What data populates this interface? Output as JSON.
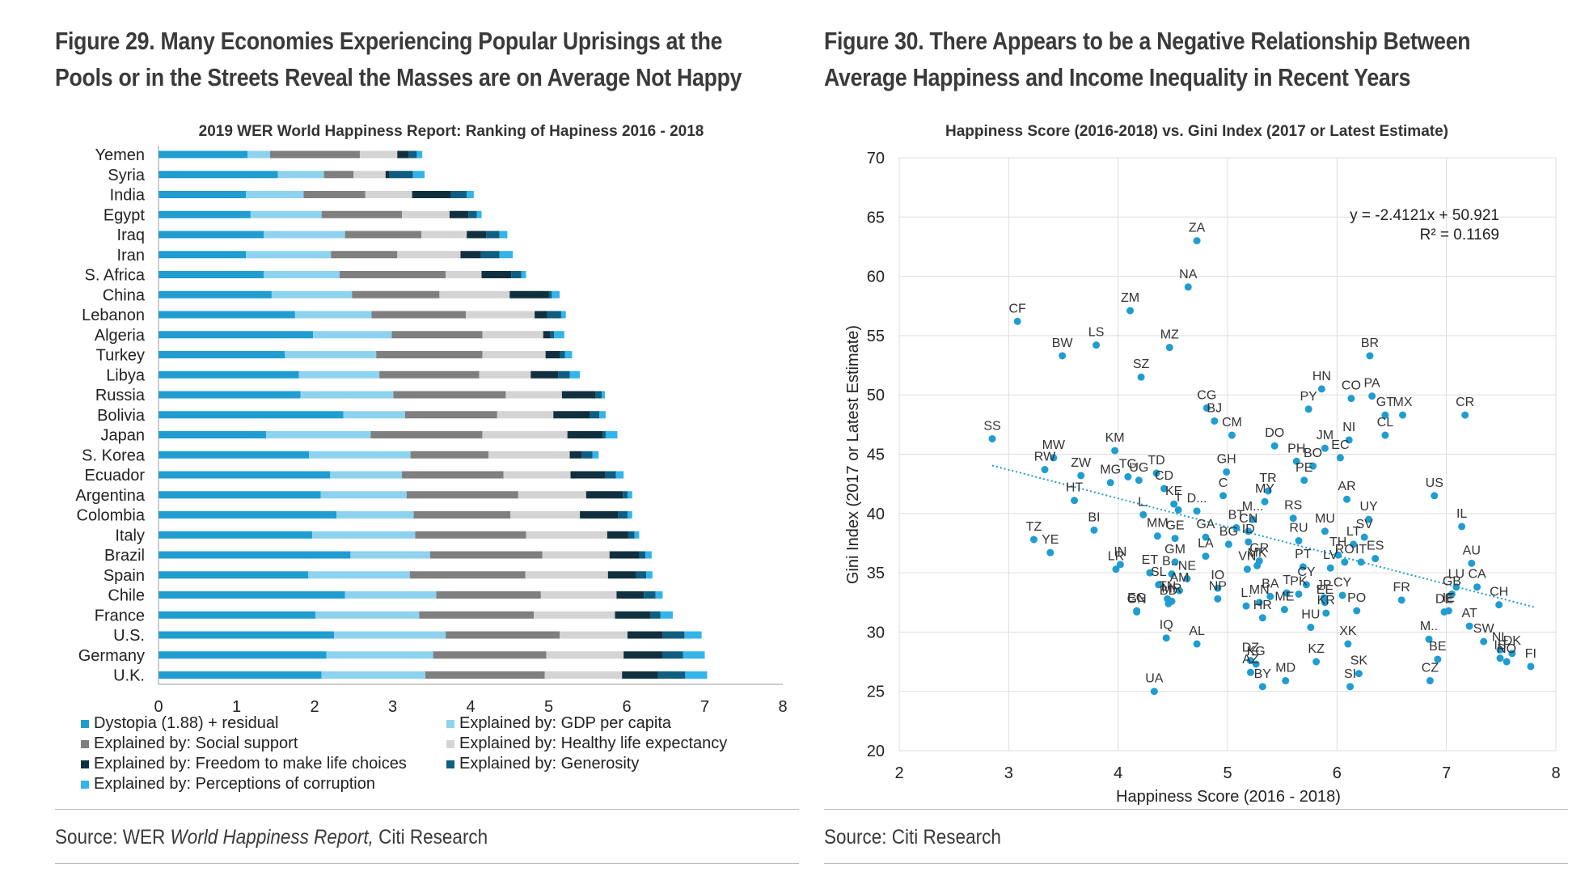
{
  "page": {
    "fig29_title": "Figure 29. Many Economies Experiencing Popular Uprisings at the Pools or in the Streets Reveal the Masses are on Average Not Happy",
    "fig30_title": "Figure 30. There Appears to be a Negative Relationship Between Average Happiness and Income Inequality in Recent Years",
    "fig29_source_prefix": "Source: WER ",
    "fig29_source_italic": "World Happiness Report,",
    "fig29_source_suffix": " Citi Research",
    "fig30_source": "Source: Citi Research"
  },
  "chart_data": [
    {
      "type": "bar",
      "stacked": true,
      "orientation": "horizontal",
      "title": "2019 WER World Happiness Report: Ranking of Hapiness 2016 - 2018",
      "categories": [
        "Yemen",
        "Syria",
        "India",
        "Egypt",
        "Iraq",
        "Iran",
        "S. Africa",
        "China",
        "Lebanon",
        "Algeria",
        "Turkey",
        "Libya",
        "Russia",
        "Bolivia",
        "Japan",
        "S. Korea",
        "Ecuador",
        "Argentina",
        "Colombia",
        "Italy",
        "Brazil",
        "Spain",
        "Chile",
        "France",
        "U.S.",
        "Germany",
        "U.K."
      ],
      "xlim": [
        0,
        8
      ],
      "xticks": [
        0,
        1,
        2,
        3,
        4,
        5,
        6,
        7,
        8
      ],
      "grid": false,
      "legend_position": "bottom",
      "series": [
        {
          "name": "Dystopia (1.88) + residual",
          "color": "#1f9dd1",
          "values": [
            1.14,
            1.53,
            1.12,
            1.18,
            1.35,
            1.12,
            1.35,
            1.45,
            1.75,
            1.98,
            1.62,
            1.8,
            1.82,
            2.37,
            1.38,
            1.93,
            2.2,
            2.08,
            2.28,
            1.97,
            2.46,
            1.92,
            2.39,
            2.01,
            2.25,
            2.15,
            2.09
          ]
        },
        {
          "name": "Explained by: GDP per capita",
          "color": "#8dd3f0",
          "values": [
            0.29,
            0.59,
            0.74,
            0.91,
            1.04,
            1.09,
            0.97,
            1.03,
            0.98,
            1.01,
            1.17,
            1.03,
            1.19,
            0.79,
            1.34,
            1.3,
            0.92,
            1.1,
            0.99,
            1.32,
            1.02,
            1.3,
            1.17,
            1.33,
            1.43,
            1.37,
            1.33
          ]
        },
        {
          "name": "Explained by: Social support",
          "color": "#7f7f7f",
          "values": [
            1.15,
            0.38,
            0.79,
            1.03,
            0.98,
            0.85,
            1.36,
            1.12,
            1.21,
            1.16,
            1.36,
            1.28,
            1.44,
            1.18,
            1.43,
            1.0,
            1.3,
            1.43,
            1.24,
            1.42,
            1.44,
            1.48,
            1.34,
            1.47,
            1.46,
            1.45,
            1.53
          ]
        },
        {
          "name": "Explained by: Healthy life expectancy",
          "color": "#d4d4d4",
          "values": [
            0.48,
            0.41,
            0.6,
            0.61,
            0.58,
            0.81,
            0.46,
            0.9,
            0.88,
            0.78,
            0.81,
            0.66,
            0.72,
            0.72,
            1.09,
            1.04,
            0.86,
            0.87,
            0.89,
            1.04,
            0.86,
            1.06,
            0.97,
            1.04,
            0.87,
            0.99,
            0.99
          ]
        },
        {
          "name": "Explained by: Freedom to make life choices",
          "color": "#10303f",
          "values": [
            0.15,
            0.05,
            0.5,
            0.24,
            0.25,
            0.26,
            0.38,
            0.5,
            0.16,
            0.09,
            0.18,
            0.35,
            0.43,
            0.47,
            0.45,
            0.15,
            0.44,
            0.47,
            0.49,
            0.27,
            0.38,
            0.36,
            0.35,
            0.45,
            0.45,
            0.5,
            0.46
          ]
        },
        {
          "name": "Explained by: Generosity",
          "color": "#0f5d80",
          "values": [
            0.1,
            0.3,
            0.2,
            0.11,
            0.17,
            0.24,
            0.13,
            0.04,
            0.18,
            0.05,
            0.07,
            0.15,
            0.08,
            0.12,
            0.04,
            0.14,
            0.14,
            0.06,
            0.12,
            0.08,
            0.08,
            0.13,
            0.15,
            0.13,
            0.28,
            0.26,
            0.35
          ]
        },
        {
          "name": "Explained by: Perceptions of corruption",
          "color": "#33b4ea",
          "values": [
            0.07,
            0.15,
            0.09,
            0.06,
            0.1,
            0.17,
            0.06,
            0.1,
            0.06,
            0.13,
            0.09,
            0.13,
            0.04,
            0.08,
            0.15,
            0.08,
            0.1,
            0.06,
            0.06,
            0.06,
            0.08,
            0.08,
            0.09,
            0.16,
            0.22,
            0.28,
            0.28
          ]
        }
      ]
    },
    {
      "type": "scatter",
      "title": "Happiness Score (2016-2018) vs. Gini Index (2017 or Latest Estimate)",
      "xlabel": "Happiness Score (2016 - 2018)",
      "ylabel": "Gini Index (2017 or Latest Estimate)",
      "xlim": [
        2,
        8
      ],
      "ylim": [
        20,
        70
      ],
      "xticks": [
        2,
        3,
        4,
        5,
        6,
        7,
        8
      ],
      "yticks": [
        20,
        25,
        30,
        35,
        40,
        45,
        50,
        55,
        60,
        65,
        70
      ],
      "grid": true,
      "color": "#1f9dd1",
      "trendline": {
        "slope": -2.4121,
        "intercept": 50.921,
        "x_range": [
          2.85,
          7.8
        ],
        "equation": "y = -2.4121x + 50.921",
        "r2": "R² = 0.1169"
      },
      "points": [
        {
          "label": "ZA",
          "x": 4.72,
          "y": 63.0
        },
        {
          "label": "NA",
          "x": 4.64,
          "y": 59.1
        },
        {
          "label": "ZM",
          "x": 4.11,
          "y": 57.1
        },
        {
          "label": "CF",
          "x": 3.08,
          "y": 56.2
        },
        {
          "label": "LS",
          "x": 3.8,
          "y": 54.2
        },
        {
          "label": "BW",
          "x": 3.49,
          "y": 53.3
        },
        {
          "label": "MZ",
          "x": 4.47,
          "y": 54.0
        },
        {
          "label": "BR",
          "x": 6.3,
          "y": 53.3
        },
        {
          "label": "SZ",
          "x": 4.21,
          "y": 51.5
        },
        {
          "label": "HN",
          "x": 5.86,
          "y": 50.5
        },
        {
          "label": "CO",
          "x": 6.13,
          "y": 49.7
        },
        {
          "label": "PA",
          "x": 6.32,
          "y": 49.9
        },
        {
          "label": "GT",
          "x": 6.44,
          "y": 48.3
        },
        {
          "label": "MX",
          "x": 6.6,
          "y": 48.3
        },
        {
          "label": "PY",
          "x": 5.74,
          "y": 48.8
        },
        {
          "label": "CR",
          "x": 7.17,
          "y": 48.3
        },
        {
          "label": "CG",
          "x": 4.81,
          "y": 48.9
        },
        {
          "label": "BJ",
          "x": 4.88,
          "y": 47.8
        },
        {
          "label": "CM",
          "x": 5.04,
          "y": 46.6
        },
        {
          "label": "CL",
          "x": 6.44,
          "y": 46.6
        },
        {
          "label": "SS",
          "x": 2.85,
          "y": 46.3
        },
        {
          "label": "JM",
          "x": 5.89,
          "y": 45.5
        },
        {
          "label": "NI",
          "x": 6.11,
          "y": 46.2
        },
        {
          "label": "DO",
          "x": 5.43,
          "y": 45.7
        },
        {
          "label": "KM",
          "x": 3.97,
          "y": 45.3
        },
        {
          "label": "PH",
          "x": 5.63,
          "y": 44.4
        },
        {
          "label": "BO",
          "x": 5.78,
          "y": 44.0
        },
        {
          "label": "EC",
          "x": 6.03,
          "y": 44.7
        },
        {
          "label": "MW",
          "x": 3.41,
          "y": 44.7
        },
        {
          "label": "RW",
          "x": 3.33,
          "y": 43.7
        },
        {
          "label": "ZW",
          "x": 3.66,
          "y": 43.2
        },
        {
          "label": "GH",
          "x": 4.99,
          "y": 43.5
        },
        {
          "label": "TD",
          "x": 4.35,
          "y": 43.4
        },
        {
          "label": "TG",
          "x": 4.09,
          "y": 43.1
        },
        {
          "label": "MG",
          "x": 3.93,
          "y": 42.6
        },
        {
          "label": "UG",
          "x": 4.19,
          "y": 42.8
        },
        {
          "label": "CD",
          "x": 4.42,
          "y": 42.1
        },
        {
          "label": "C",
          "x": 4.96,
          "y": 41.5
        },
        {
          "label": "TR",
          "x": 5.37,
          "y": 41.9
        },
        {
          "label": "PE",
          "x": 5.7,
          "y": 42.8
        },
        {
          "label": "MY",
          "x": 5.34,
          "y": 41.0
        },
        {
          "label": "AR",
          "x": 6.09,
          "y": 41.2
        },
        {
          "label": "US",
          "x": 6.89,
          "y": 41.5
        },
        {
          "label": "KE",
          "x": 4.51,
          "y": 40.8
        },
        {
          "label": "HT",
          "x": 3.6,
          "y": 41.1
        },
        {
          "label": "I",
          "x": 4.55,
          "y": 40.3
        },
        {
          "label": "D...",
          "x": 4.72,
          "y": 40.2
        },
        {
          "label": "L.",
          "x": 4.23,
          "y": 39.9
        },
        {
          "label": "M...",
          "x": 5.23,
          "y": 39.5
        },
        {
          "label": "RS",
          "x": 5.6,
          "y": 39.6
        },
        {
          "label": "IL",
          "x": 7.14,
          "y": 38.9
        },
        {
          "label": "UY",
          "x": 6.29,
          "y": 39.5
        },
        {
          "label": "MU",
          "x": 5.89,
          "y": 38.5
        },
        {
          "label": "TZ",
          "x": 3.23,
          "y": 37.8
        },
        {
          "label": "BI",
          "x": 3.78,
          "y": 38.6
        },
        {
          "label": "MM",
          "x": 4.36,
          "y": 38.1
        },
        {
          "label": "GE",
          "x": 4.52,
          "y": 37.9
        },
        {
          "label": "GA",
          "x": 4.8,
          "y": 38.0
        },
        {
          "label": "BT",
          "x": 5.08,
          "y": 38.8
        },
        {
          "label": "CN",
          "x": 5.19,
          "y": 38.5
        },
        {
          "label": "BG",
          "x": 5.01,
          "y": 37.4
        },
        {
          "label": "ID",
          "x": 5.19,
          "y": 37.6
        },
        {
          "label": "RU",
          "x": 5.65,
          "y": 37.7
        },
        {
          "label": "LT",
          "x": 6.15,
          "y": 37.4
        },
        {
          "label": "SV",
          "x": 6.25,
          "y": 38.0
        },
        {
          "label": "AU",
          "x": 7.23,
          "y": 35.8
        },
        {
          "label": "YE",
          "x": 3.38,
          "y": 36.7
        },
        {
          "label": "IN",
          "x": 4.02,
          "y": 35.7
        },
        {
          "label": "GM",
          "x": 4.52,
          "y": 35.9
        },
        {
          "label": "LA",
          "x": 4.8,
          "y": 36.4
        },
        {
          "label": "GR",
          "x": 5.29,
          "y": 36.0
        },
        {
          "label": "PT",
          "x": 5.69,
          "y": 35.5
        },
        {
          "label": "TH",
          "x": 6.01,
          "y": 36.5
        },
        {
          "label": "IT",
          "x": 6.22,
          "y": 35.9
        },
        {
          "label": "ES",
          "x": 6.35,
          "y": 36.2
        },
        {
          "label": "VN",
          "x": 5.18,
          "y": 35.3
        },
        {
          "label": "ET",
          "x": 4.29,
          "y": 35.0
        },
        {
          "label": "LR",
          "x": 3.98,
          "y": 35.3
        },
        {
          "label": "B...",
          "x": 4.49,
          "y": 34.9
        },
        {
          "label": "NE",
          "x": 4.63,
          "y": 34.5
        },
        {
          "label": "MK",
          "x": 5.27,
          "y": 35.6
        },
        {
          "label": "LV",
          "x": 5.94,
          "y": 35.4
        },
        {
          "label": "RO",
          "x": 6.07,
          "y": 35.9
        },
        {
          "label": "LU",
          "x": 7.09,
          "y": 33.8
        },
        {
          "label": "CA",
          "x": 7.28,
          "y": 33.8
        },
        {
          "label": "IO",
          "x": 4.91,
          "y": 33.7
        },
        {
          "label": "SL",
          "x": 4.37,
          "y": 34.0
        },
        {
          "label": "AM",
          "x": 4.56,
          "y": 33.5
        },
        {
          "label": "BA",
          "x": 5.39,
          "y": 33.0
        },
        {
          "label": "CY",
          "x": 5.72,
          "y": 34.0
        },
        {
          "label": "T",
          "x": 5.54,
          "y": 33.3
        },
        {
          "label": "CY",
          "x": 6.05,
          "y": 33.1
        },
        {
          "label": "FR",
          "x": 6.59,
          "y": 32.7
        },
        {
          "label": "GB",
          "x": 7.05,
          "y": 33.2
        },
        {
          "label": "TN",
          "x": 4.45,
          "y": 32.8
        },
        {
          "label": "MN",
          "x": 5.29,
          "y": 32.5
        },
        {
          "label": "PK",
          "x": 5.65,
          "y": 33.2
        },
        {
          "label": "EE",
          "x": 5.89,
          "y": 32.5
        },
        {
          "label": "BD",
          "x": 4.46,
          "y": 32.4
        },
        {
          "label": "MR",
          "x": 4.49,
          "y": 32.6
        },
        {
          "label": "NP",
          "x": 4.91,
          "y": 32.8
        },
        {
          "label": "L.",
          "x": 5.17,
          "y": 32.2
        },
        {
          "label": "JP",
          "x": 5.88,
          "y": 32.9
        },
        {
          "label": "DE",
          "x": 6.98,
          "y": 31.7
        },
        {
          "label": "IE",
          "x": 7.02,
          "y": 31.8
        },
        {
          "label": "CH",
          "x": 7.48,
          "y": 32.3
        },
        {
          "label": "GN",
          "x": 4.17,
          "y": 31.7
        },
        {
          "label": "EG",
          "x": 4.17,
          "y": 31.8
        },
        {
          "label": "HR",
          "x": 5.32,
          "y": 31.2
        },
        {
          "label": "ME",
          "x": 5.52,
          "y": 31.9
        },
        {
          "label": "KR",
          "x": 5.9,
          "y": 31.6
        },
        {
          "label": "PO",
          "x": 6.18,
          "y": 31.8
        },
        {
          "label": "AT",
          "x": 7.21,
          "y": 30.5
        },
        {
          "label": "IQ",
          "x": 4.44,
          "y": 29.5
        },
        {
          "label": "AL",
          "x": 4.72,
          "y": 29.0
        },
        {
          "label": "HU",
          "x": 5.76,
          "y": 30.4
        },
        {
          "label": "SW",
          "x": 7.34,
          "y": 29.2
        },
        {
          "label": "M..",
          "x": 6.84,
          "y": 29.4
        },
        {
          "label": "XK",
          "x": 6.1,
          "y": 29.0
        },
        {
          "label": "BE",
          "x": 6.92,
          "y": 27.7
        },
        {
          "label": "NL",
          "x": 7.49,
          "y": 28.5
        },
        {
          "label": "DK",
          "x": 7.6,
          "y": 28.2
        },
        {
          "label": "IS",
          "x": 7.49,
          "y": 27.8
        },
        {
          "label": "NO",
          "x": 7.55,
          "y": 27.5
        },
        {
          "label": "FI",
          "x": 7.77,
          "y": 27.1
        },
        {
          "label": "DZ",
          "x": 5.21,
          "y": 27.6
        },
        {
          "label": "KG",
          "x": 5.26,
          "y": 27.3
        },
        {
          "label": "KZ",
          "x": 5.81,
          "y": 27.5
        },
        {
          "label": "SK",
          "x": 6.2,
          "y": 26.5
        },
        {
          "label": "CZ",
          "x": 6.85,
          "y": 25.9
        },
        {
          "label": "AZ",
          "x": 5.21,
          "y": 26.6
        },
        {
          "label": "MD",
          "x": 5.53,
          "y": 25.9
        },
        {
          "label": "SI",
          "x": 6.12,
          "y": 25.4
        },
        {
          "label": "BY",
          "x": 5.32,
          "y": 25.4
        },
        {
          "label": "UA",
          "x": 4.33,
          "y": 25.0
        }
      ]
    }
  ]
}
